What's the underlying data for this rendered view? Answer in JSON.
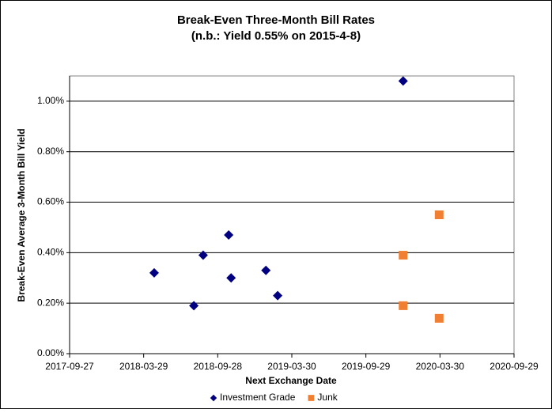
{
  "chart_data": {
    "type": "scatter",
    "title": "Break-Even Three-Month Bill Rates",
    "subtitle": "(n.b.: Yield 0.55% on 2015-4-8)",
    "x_label": "Next Exchange Date",
    "y_label": "Break-Even Average 3-Month  Bill Yield",
    "xlim": [
      "2017-09-27",
      "2020-09-29"
    ],
    "xticks": [
      "2017-09-27",
      "2018-03-29",
      "2018-09-28",
      "2019-03-30",
      "2019-09-29",
      "2020-03-30",
      "2020-09-29"
    ],
    "ylim": [
      0,
      1.1
    ],
    "yticks": [
      {
        "value": 0,
        "label": "0.00%"
      },
      {
        "value": 0.2,
        "label": "0.20%"
      },
      {
        "value": 0.4,
        "label": "0.40%"
      },
      {
        "value": 0.6,
        "label": "0.60%"
      },
      {
        "value": 0.8,
        "label": "0.80%"
      },
      {
        "value": 1.0,
        "label": "1.00%"
      }
    ],
    "grid": true,
    "legend": "bottom",
    "series": [
      {
        "name": "Investment Grade",
        "color": "#000080",
        "marker": "diamond",
        "x": [
          "2018-04-24",
          "2018-07-31",
          "2018-08-23",
          "2018-10-25",
          "2018-10-31",
          "2019-01-25",
          "2019-02-23",
          "2019-12-30"
        ],
        "values": [
          0.32,
          0.19,
          0.39,
          0.47,
          0.3,
          0.33,
          0.23,
          1.08
        ]
      },
      {
        "name": "Junk",
        "color": "#f07f32",
        "marker": "square",
        "x": [
          "2019-12-30",
          "2019-12-30",
          "2020-03-28",
          "2020-03-28"
        ],
        "values": [
          0.39,
          0.19,
          0.55,
          0.14
        ]
      }
    ]
  }
}
